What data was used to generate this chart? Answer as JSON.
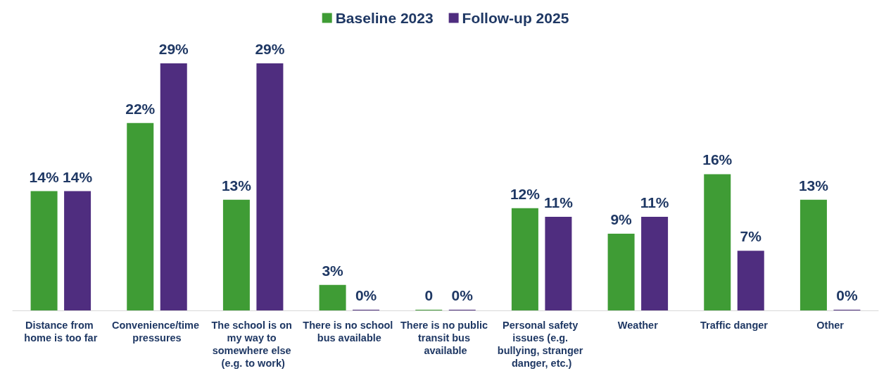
{
  "chart_data": {
    "type": "bar",
    "categories": [
      "Distance from home is too far",
      "Convenience/time pressures",
      "The school is on my way to somewhere else (e.g. to work)",
      "There is no school bus available",
      "There is no public transit bus available",
      "Personal safety issues (e.g. bullying, stranger danger, etc.)",
      "Weather",
      "Traffic danger",
      "Other"
    ],
    "series": [
      {
        "name": "Baseline 2023",
        "color": "#3f9c35",
        "values": [
          14,
          22,
          13,
          3,
          0,
          12,
          9,
          16,
          13
        ],
        "value_labels": [
          "14%",
          "22%",
          "13%",
          "3%",
          "0",
          "12%",
          "9%",
          "16%",
          "13%"
        ]
      },
      {
        "name": "Follow-up 2025",
        "color": "#4f2d7f",
        "values": [
          14,
          29,
          29,
          0,
          0,
          11,
          11,
          7,
          0
        ],
        "value_labels": [
          "14%",
          "29%",
          "29%",
          "0%",
          "0%",
          "11%",
          "11%",
          "7%",
          "0%"
        ]
      }
    ],
    "legend": "top",
    "grid": false
  }
}
